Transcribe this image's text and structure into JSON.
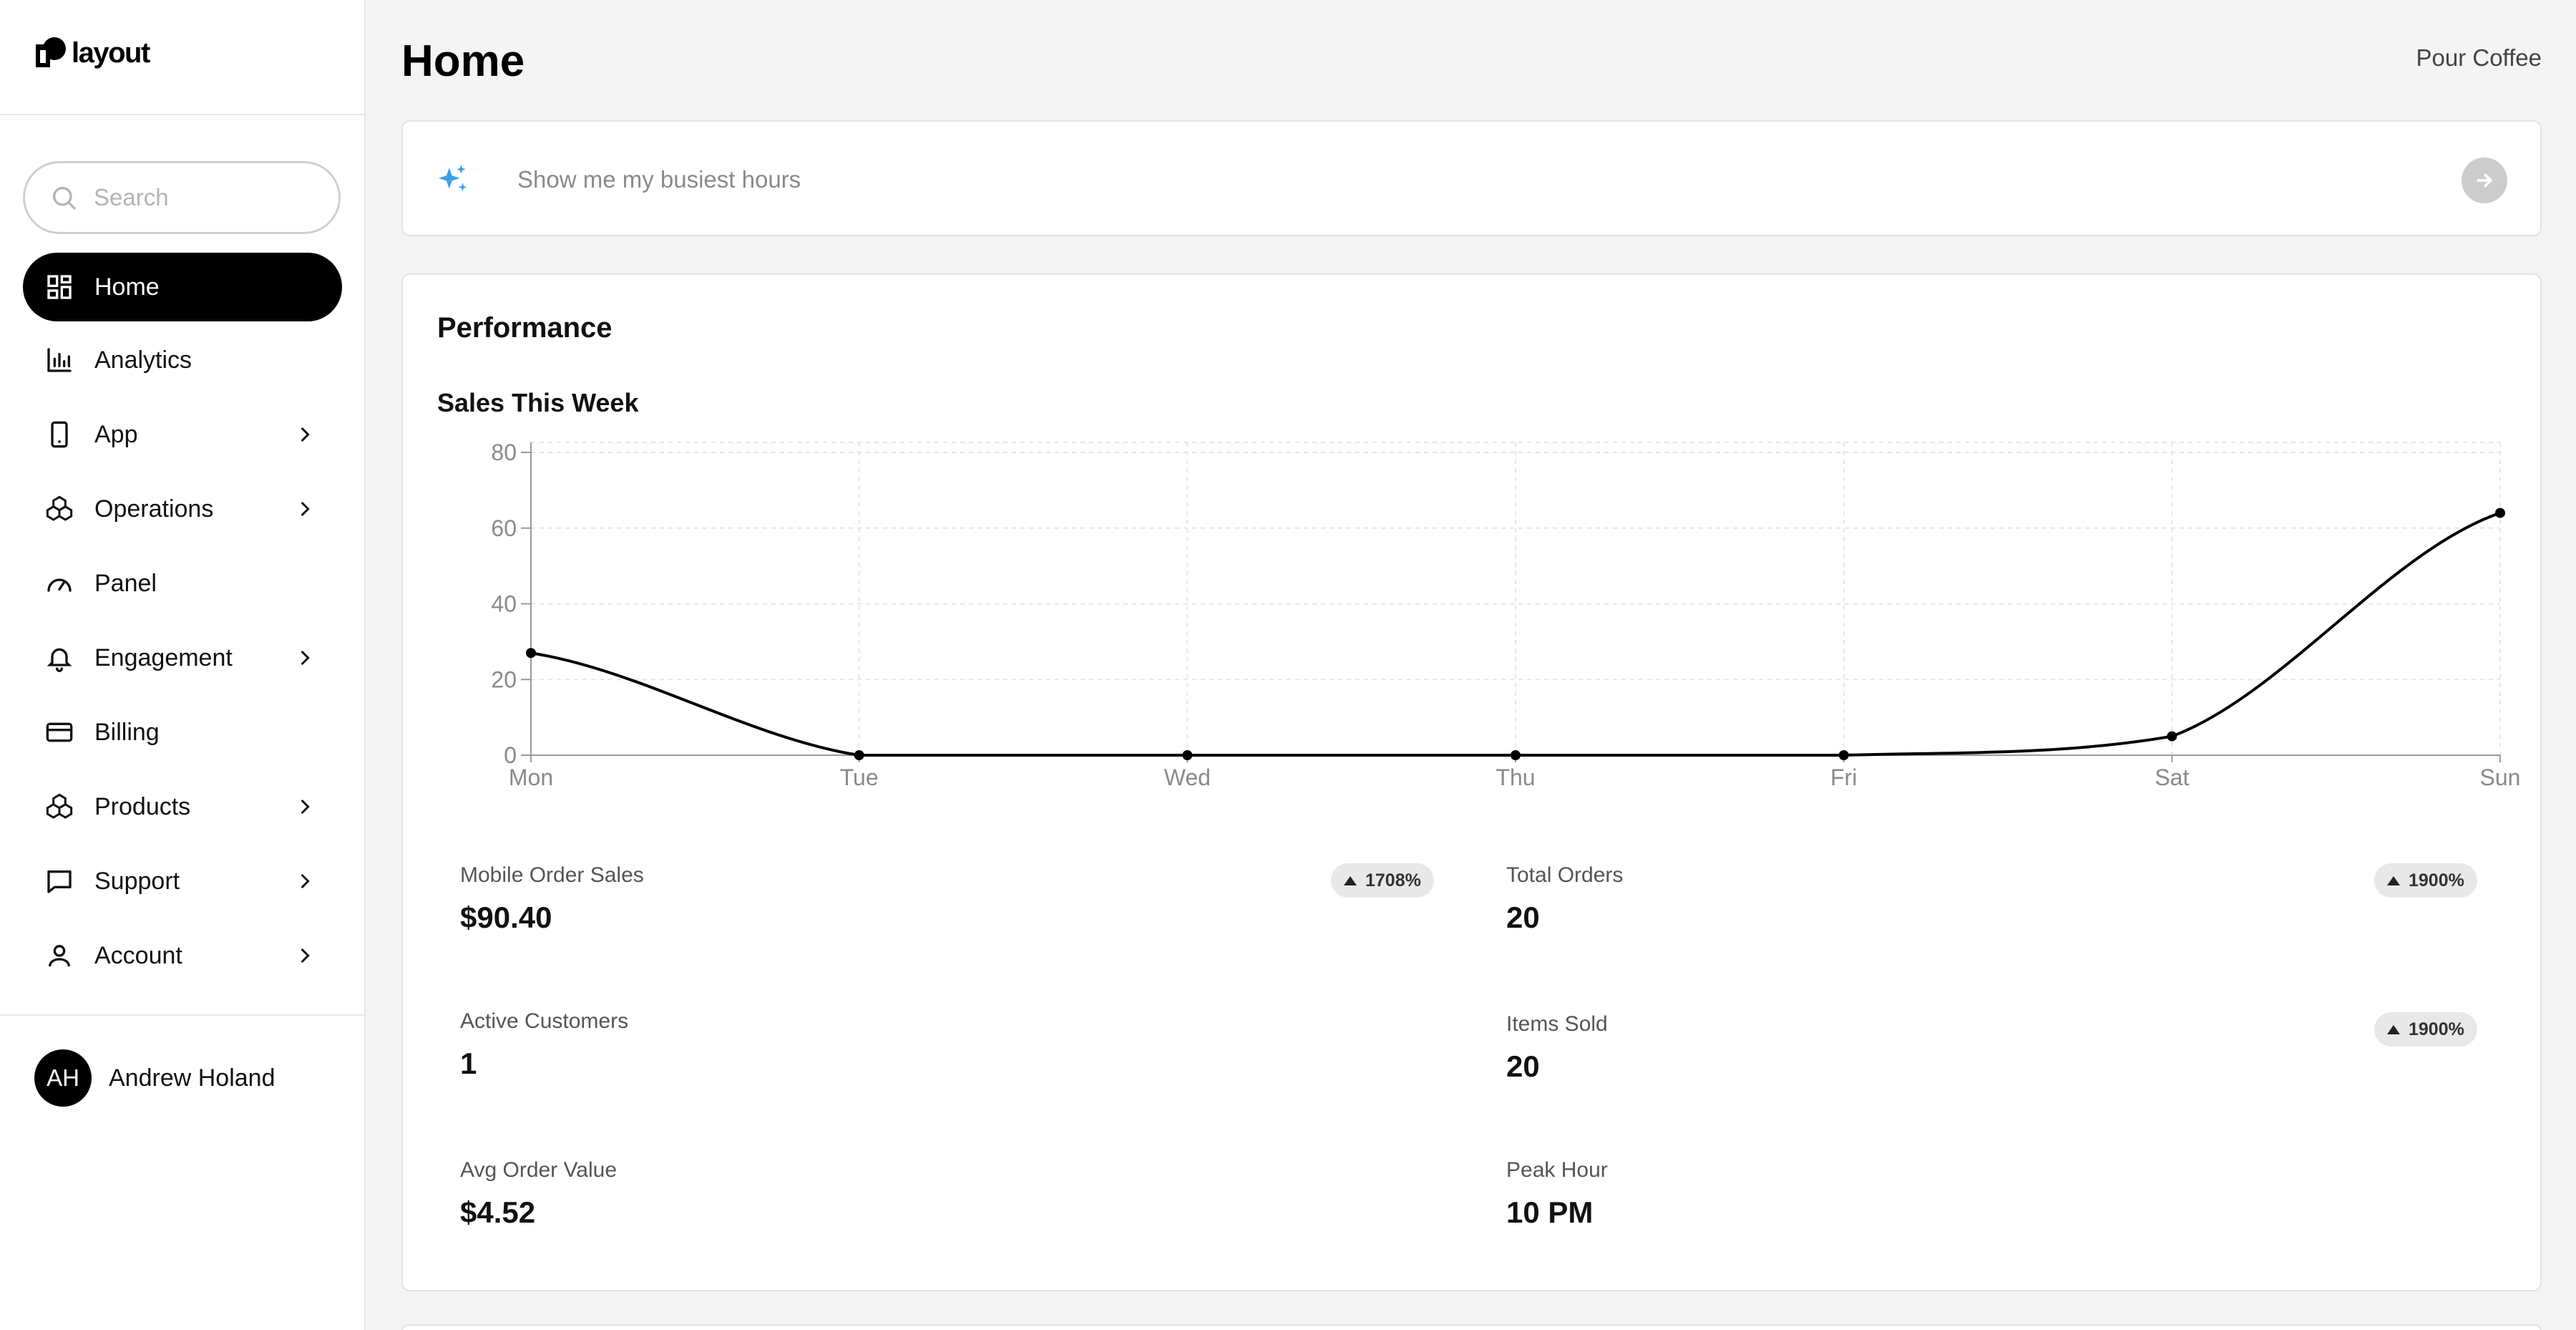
{
  "app": {
    "logo_text": "layout"
  },
  "search": {
    "placeholder": "Search"
  },
  "sidebar": {
    "items": [
      {
        "label": "Home",
        "icon": "grid-icon",
        "active": true,
        "has_submenu": false
      },
      {
        "label": "Analytics",
        "icon": "bar-chart-icon",
        "active": false,
        "has_submenu": false
      },
      {
        "label": "App",
        "icon": "phone-icon",
        "active": false,
        "has_submenu": true
      },
      {
        "label": "Operations",
        "icon": "boxes-icon",
        "active": false,
        "has_submenu": true
      },
      {
        "label": "Panel",
        "icon": "gauge-icon",
        "active": false,
        "has_submenu": false
      },
      {
        "label": "Engagement",
        "icon": "bell-icon",
        "active": false,
        "has_submenu": true
      },
      {
        "label": "Billing",
        "icon": "credit-card-icon",
        "active": false,
        "has_submenu": false
      },
      {
        "label": "Products",
        "icon": "boxes-icon",
        "active": false,
        "has_submenu": true
      },
      {
        "label": "Support",
        "icon": "message-square-icon",
        "active": false,
        "has_submenu": true
      },
      {
        "label": "Account",
        "icon": "user-icon",
        "active": false,
        "has_submenu": true
      }
    ]
  },
  "user": {
    "initials": "AH",
    "name": "Andrew Holand"
  },
  "header": {
    "title": "Home",
    "store_name": "Pour Coffee"
  },
  "prompt": {
    "placeholder": "Show me my busiest hours",
    "icon": "sparkles-icon",
    "send_icon": "arrow-right-icon"
  },
  "performance": {
    "title": "Performance",
    "metrics": [
      {
        "label": "Mobile Order Sales",
        "value": "$90.40",
        "change": "1708%"
      },
      {
        "label": "Total Orders",
        "value": "20",
        "change": "1900%"
      },
      {
        "label": "Active Customers",
        "value": "1",
        "change": null
      },
      {
        "label": "Items Sold",
        "value": "20",
        "change": "1900%"
      },
      {
        "label": "Avg Order Value",
        "value": "$4.52",
        "change": null
      },
      {
        "label": "Peak Hour",
        "value": "10 PM",
        "change": null
      }
    ]
  },
  "chart_data": {
    "type": "line",
    "title": "Sales This Week",
    "categories": [
      "Mon",
      "Tue",
      "Wed",
      "Thu",
      "Fri",
      "Sat",
      "Sun"
    ],
    "series": [
      {
        "values": [
          27,
          0,
          0,
          0,
          0,
          5,
          64
        ]
      }
    ],
    "ylim": [
      0,
      80
    ],
    "yticks": [
      "0",
      "20",
      "40",
      "60",
      "80"
    ],
    "grid": true,
    "color": "#000000"
  }
}
